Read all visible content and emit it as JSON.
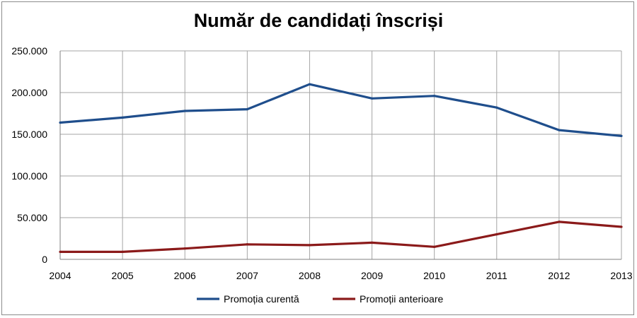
{
  "chart_data": {
    "type": "line",
    "title": "Număr de candidați înscriși",
    "xlabel": "",
    "ylabel": "",
    "categories": [
      "2004",
      "2005",
      "2006",
      "2007",
      "2008",
      "2009",
      "2010",
      "2011",
      "2012",
      "2013"
    ],
    "series": [
      {
        "name": "Promoția curentă",
        "color": "#1f4e8c",
        "values": [
          164000,
          170000,
          178000,
          180000,
          210000,
          193000,
          196000,
          182000,
          155000,
          148000
        ]
      },
      {
        "name": "Promoții anterioare",
        "color": "#8b1a1a",
        "values": [
          9000,
          9000,
          13000,
          18000,
          17000,
          20000,
          15000,
          30000,
          45000,
          39000
        ]
      }
    ],
    "ylim": [
      0,
      250000
    ],
    "yticks": [
      0,
      50000,
      100000,
      150000,
      200000,
      250000
    ],
    "ytick_labels": [
      "0",
      "50.000",
      "100.000",
      "150.000",
      "200.000",
      "250.000"
    ],
    "grid": true,
    "legend_position": "bottom"
  }
}
